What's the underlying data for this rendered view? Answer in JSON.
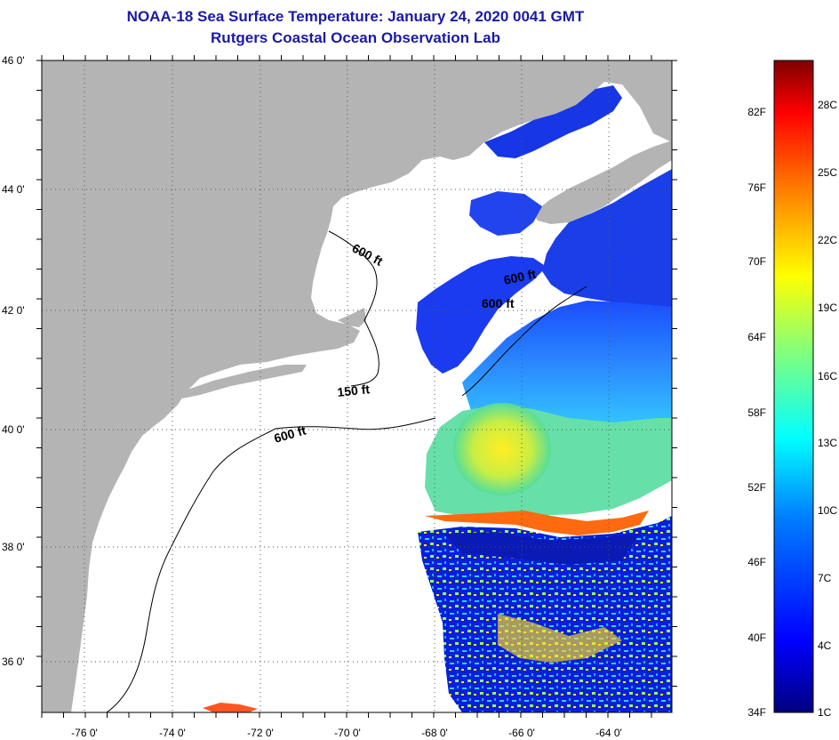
{
  "title": {
    "line1": "NOAA-18 Sea Surface Temperature:  January 24, 2020 0041 GMT",
    "line2": "Rutgers Coastal Ocean Observation Lab"
  },
  "map": {
    "lon_labels": [
      "-76 0'",
      "-74 0'",
      "-72 0'",
      "-70 0'",
      "-68 0'",
      "-66 0'",
      "-64 0'"
    ],
    "lat_labels": [
      "46 0'",
      "44 0'",
      "42 0'",
      "40 0'",
      "38 0'",
      "36 0'"
    ],
    "isobaths": [
      {
        "label": "600 ft",
        "id": "iso1"
      },
      {
        "label": "600 ft",
        "id": "iso2"
      },
      {
        "label": "600 ft",
        "id": "iso3"
      },
      {
        "label": "150 ft",
        "id": "iso4"
      },
      {
        "label": "600 ft",
        "id": "iso5"
      }
    ],
    "colors": {
      "land": "#b4b4b4",
      "water_nodata": "#ffffff",
      "title": "#1a1aa6"
    }
  },
  "colorbar": {
    "fahrenheit_labels": [
      "82F",
      "76F",
      "70F",
      "64F",
      "58F",
      "52F",
      "46F",
      "40F",
      "34F"
    ],
    "celsius_labels": [
      "28C",
      "25C",
      "22C",
      "19C",
      "16C",
      "13C",
      "10C",
      "7C",
      "4C",
      "1C"
    ],
    "range_c": [
      1,
      30
    ],
    "colors": [
      "#00007f",
      "#0000ff",
      "#007fff",
      "#00ffff",
      "#7fff7f",
      "#ffff00",
      "#ff7f00",
      "#ff0000",
      "#7f0000"
    ]
  }
}
